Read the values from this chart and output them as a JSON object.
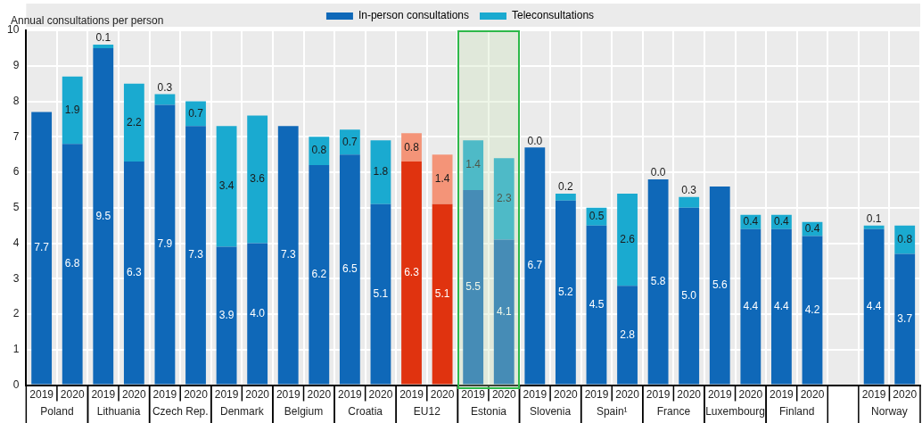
{
  "chart_data": {
    "type": "bar",
    "stacked": true,
    "ylabel": "Annual consultations per person",
    "categories": [
      "2019",
      "2020",
      "2019",
      "2020",
      "2019",
      "2020",
      "2019",
      "2020",
      "2019",
      "2020",
      "2019",
      "2020",
      "2019",
      "2020",
      "2019",
      "2020",
      "2019",
      "2020",
      "2019",
      "2020",
      "2019",
      "2020",
      "2019",
      "2020",
      "2019",
      "2020",
      null,
      "2019",
      "2020"
    ],
    "series": [
      {
        "name": "In-person consultations",
        "color": "#0f68b8",
        "colors": [
          "#0f68b8",
          "#0f68b8",
          "#0f68b8",
          "#0f68b8",
          "#0f68b8",
          "#0f68b8",
          "#0f68b8",
          "#0f68b8",
          "#0f68b8",
          "#0f68b8",
          "#0f68b8",
          "#0f68b8",
          "#e0330f",
          "#e0330f",
          "#0f68b8",
          "#0f68b8",
          "#0f68b8",
          "#0f68b8",
          "#0f68b8",
          "#0f68b8",
          "#0f68b8",
          "#0f68b8",
          "#0f68b8",
          "#0f68b8",
          "#0f68b8",
          "#0f68b8",
          null,
          "#0f68b8",
          "#0f68b8"
        ],
        "values": [
          7.7,
          6.8,
          9.5,
          6.3,
          7.9,
          7.3,
          3.9,
          4.0,
          7.3,
          6.2,
          6.5,
          5.1,
          6.3,
          5.1,
          5.5,
          4.1,
          6.7,
          5.2,
          4.5,
          2.8,
          5.8,
          5.0,
          5.6,
          4.4,
          4.4,
          4.2,
          null,
          4.4,
          3.7
        ],
        "value_labels": [
          "7.7",
          "6.8",
          "9.5",
          "6.3",
          "7.9",
          "7.3",
          "3.9",
          "4.0",
          "7.3",
          "6.2",
          "6.5",
          "5.1",
          "6.3",
          "5.1",
          "5.5",
          "4.1",
          "6.7",
          "5.2",
          "4.5",
          "2.8",
          "5.8",
          "5.0",
          "5.6",
          "4.4",
          "4.4",
          "4.2",
          null,
          "4.4",
          "3.7"
        ]
      },
      {
        "name": "Teleconsultations",
        "color": "#1aaad0",
        "colors": [
          "#1aaad0",
          "#1aaad0",
          "#1aaad0",
          "#1aaad0",
          "#1aaad0",
          "#1aaad0",
          "#1aaad0",
          "#1aaad0",
          "#1aaad0",
          "#1aaad0",
          "#1aaad0",
          "#1aaad0",
          "#f49478",
          "#f49478",
          "#1aaad0",
          "#1aaad0",
          "#1aaad0",
          "#1aaad0",
          "#1aaad0",
          "#1aaad0",
          "#1aaad0",
          "#1aaad0",
          "#1aaad0",
          "#1aaad0",
          "#1aaad0",
          "#1aaad0",
          null,
          "#1aaad0",
          "#1aaad0"
        ],
        "values": [
          null,
          1.9,
          0.1,
          2.2,
          0.3,
          0.7,
          3.4,
          3.6,
          null,
          0.8,
          0.7,
          1.8,
          0.8,
          1.4,
          1.4,
          2.3,
          0.0,
          0.2,
          0.5,
          2.6,
          0.0,
          0.3,
          null,
          0.4,
          0.4,
          0.4,
          null,
          0.1,
          0.8
        ],
        "value_labels": [
          null,
          "1.9",
          "0.1",
          "2.2",
          "0.3",
          "0.7",
          "3.4",
          "3.6",
          null,
          "0.8",
          "0.7",
          "1.8",
          "0.8",
          "1.4",
          "1.4",
          "2.3",
          "0.0",
          "0.2",
          "0.5",
          "2.6",
          "0.0",
          "0.3",
          null,
          "0.4",
          "0.4",
          "0.4",
          null,
          "0.1",
          "0.8"
        ]
      }
    ],
    "annotations": [
      "Poland",
      "Lithuania",
      "Czech Rep.",
      "Denmark",
      "Belgium",
      "Croatia",
      "EU12",
      "Estonia",
      "Slovenia",
      "Spain¹",
      "France",
      "Luxembourg",
      "Finland",
      "Norway"
    ],
    "ylim": [
      0,
      10
    ],
    "yticks": [
      0,
      1,
      2,
      3,
      4,
      5,
      6,
      7,
      8,
      9,
      10
    ],
    "grid": true,
    "legend": "top"
  }
}
